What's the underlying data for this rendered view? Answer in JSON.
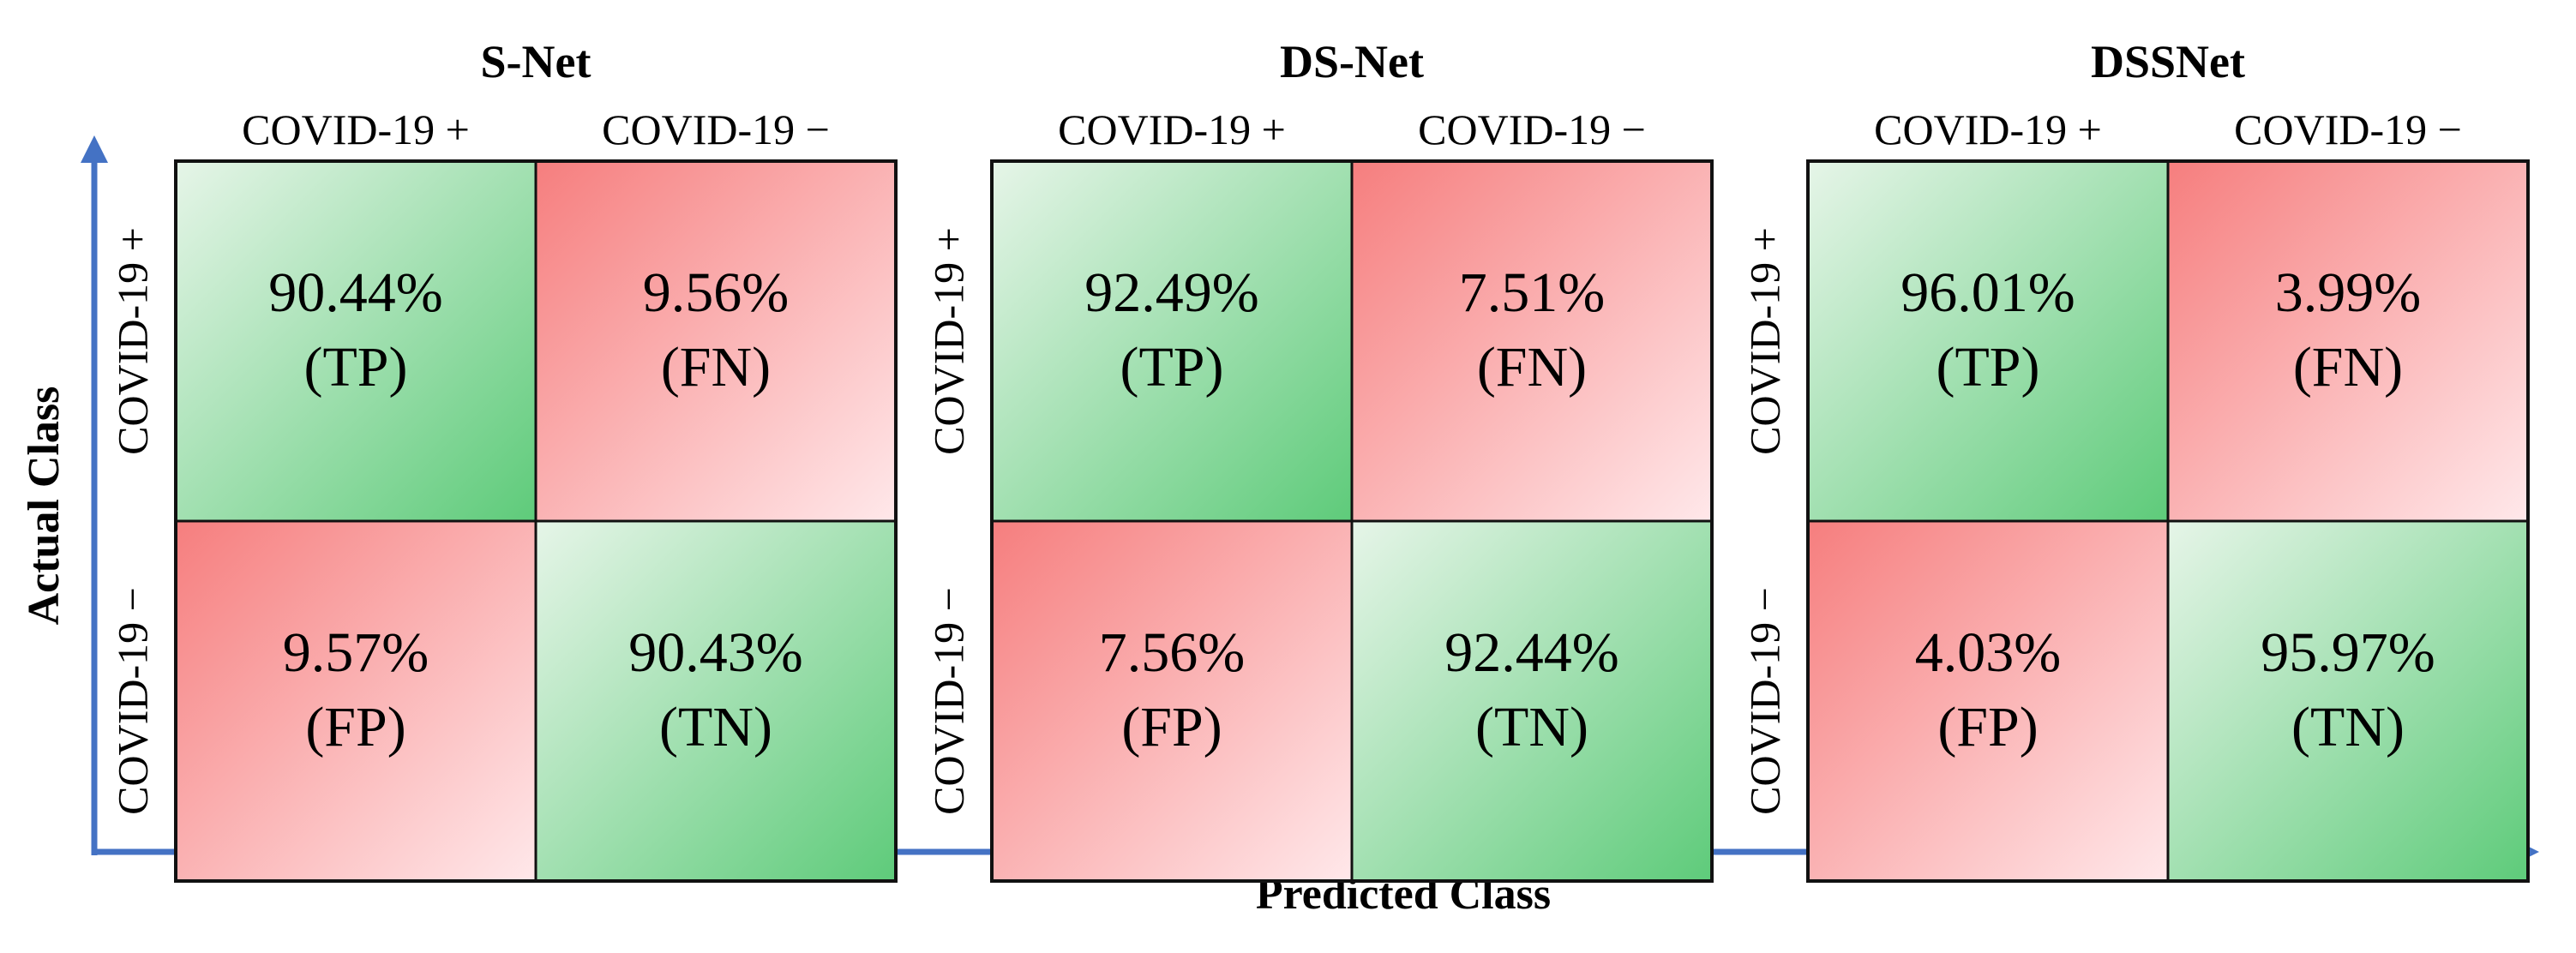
{
  "chart_data": [
    {
      "type": "heatmap",
      "title": "S-Net",
      "columns": [
        "COVID-19 +",
        "COVID-19 −"
      ],
      "rows": [
        "COVID-19 +",
        "COVID-19 −"
      ],
      "cells": [
        [
          {
            "value": "90.44%",
            "label": "(TP)",
            "kind": "correct"
          },
          {
            "value": "9.56%",
            "label": "(FN)",
            "kind": "error"
          }
        ],
        [
          {
            "value": "9.57%",
            "label": "(FP)",
            "kind": "error"
          },
          {
            "value": "90.43%",
            "label": "(TN)",
            "kind": "correct"
          }
        ]
      ]
    },
    {
      "type": "heatmap",
      "title": "DS-Net",
      "columns": [
        "COVID-19 +",
        "COVID-19 −"
      ],
      "rows": [
        "COVID-19 +",
        "COVID-19 −"
      ],
      "cells": [
        [
          {
            "value": "92.49%",
            "label": "(TP)",
            "kind": "correct"
          },
          {
            "value": "7.51%",
            "label": "(FN)",
            "kind": "error"
          }
        ],
        [
          {
            "value": "7.56%",
            "label": "(FP)",
            "kind": "error"
          },
          {
            "value": "92.44%",
            "label": "(TN)",
            "kind": "correct"
          }
        ]
      ]
    },
    {
      "type": "heatmap",
      "title": "DSSNet",
      "columns": [
        "COVID-19 +",
        "COVID-19 −"
      ],
      "rows": [
        "COVID-19 +",
        "COVID-19 −"
      ],
      "cells": [
        [
          {
            "value": "96.01%",
            "label": "(TP)",
            "kind": "correct"
          },
          {
            "value": "3.99%",
            "label": "(FN)",
            "kind": "error"
          }
        ],
        [
          {
            "value": "4.03%",
            "label": "(FP)",
            "kind": "error"
          },
          {
            "value": "95.97%",
            "label": "(TN)",
            "kind": "correct"
          }
        ]
      ]
    }
  ],
  "axes": {
    "ylabel": "Actual Class",
    "xlabel": "Predicted Class"
  },
  "colors": {
    "axis": "#4472c4",
    "correct_light": "#e6f5e8",
    "correct_dark": "#5ecb7a",
    "error_dark": "#f67e7e",
    "error_light": "#ffe8ea",
    "grid": "#111111"
  }
}
